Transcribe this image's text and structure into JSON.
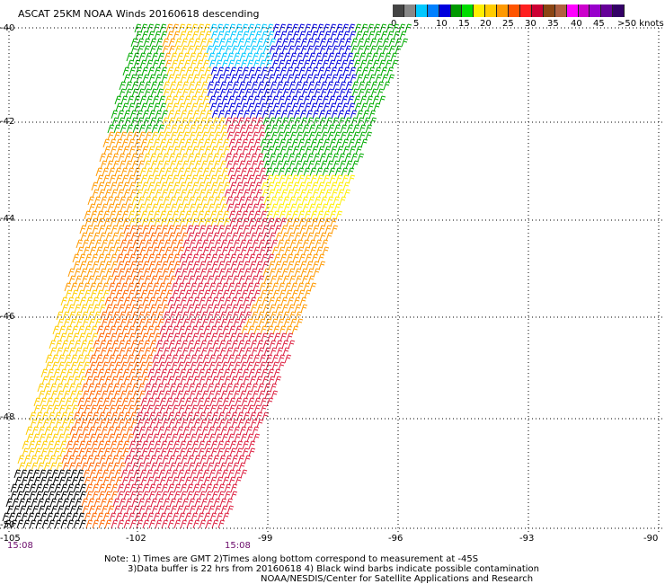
{
  "title": "ASCAT 25KM NOAA Winds 20160618 descending",
  "colorbar": {
    "colors": [
      "#444444",
      "#888888",
      "#00c8ff",
      "#0080ff",
      "#0000dd",
      "#009900",
      "#00dd00",
      "#ffee00",
      "#ffcc00",
      "#ff9900",
      "#ff5500",
      "#ff2020",
      "#cc0033",
      "#8b4513",
      "#b06040",
      "#ff00ff",
      "#cc00cc",
      "#9900cc",
      "#660099",
      "#330066"
    ],
    "labels": [
      "0",
      "5",
      "10",
      "15",
      "20",
      "25",
      "30",
      "35",
      "40",
      "45",
      ">50 knots"
    ]
  },
  "map": {
    "y_labels": [
      "-40",
      "-42",
      "-44",
      "-46",
      "-48",
      "-50"
    ],
    "x_labels": [
      "-105",
      "-102",
      "-99",
      "-96",
      "-93",
      "-90"
    ],
    "time_labels": [
      "15:08",
      "15:08"
    ]
  },
  "notes": {
    "line1": "Note: 1) Times are GMT 2)Times along bottom correspond to measurement at -45S",
    "line2": "3)Data buffer is 22 hrs from 20160618 4) Black wind barbs indicate possible contamination",
    "line3": "NOAA/NESDIS/Center for Satellite Applications and Research"
  }
}
